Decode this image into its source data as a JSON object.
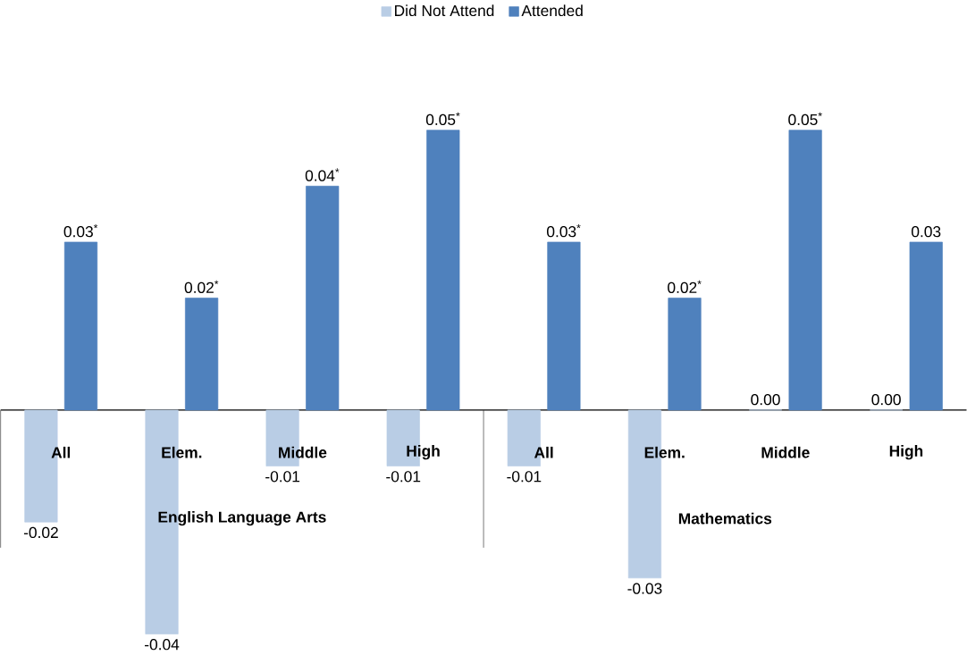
{
  "chart_data": {
    "type": "bar",
    "categories": [
      "All",
      "Elem.",
      "Middle",
      "High",
      "All",
      "Elem.",
      "Middle",
      "High"
    ],
    "series": [
      {
        "name": "Did Not Attend",
        "color": "#b9cde5",
        "values": [
          -0.02,
          -0.04,
          -0.01,
          -0.01,
          -0.01,
          -0.03,
          0.0,
          0.0
        ],
        "value_labels": [
          "-0.02",
          "-0.04",
          "-0.01",
          "-0.01",
          "-0.01",
          "-0.03",
          "0.00",
          "0.00"
        ]
      },
      {
        "name": "Attended",
        "color": "#4f81bd",
        "values": [
          0.03,
          0.02,
          0.04,
          0.05,
          0.03,
          0.02,
          0.05,
          0.03
        ],
        "value_labels": [
          "0.03$^{*}$",
          "0.02$^{*}$",
          "0.04$^{*}$",
          "0.05$^{*}$",
          "0.03$^{*}$",
          "0.02$^{*}$",
          "0.05$^{*}$",
          "0.03"
        ]
      }
    ],
    "annotations": [
      "English Language Arts",
      "Mathematics"
    ],
    "legend": "top"
  }
}
